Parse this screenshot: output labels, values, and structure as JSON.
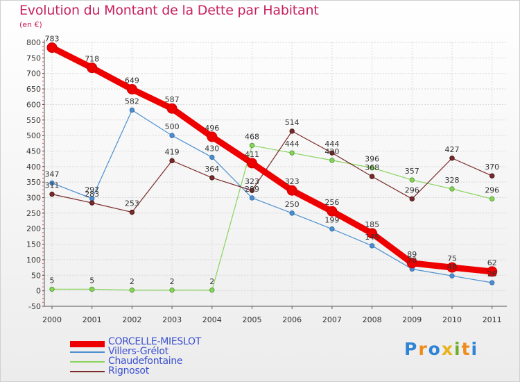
{
  "chart_data": {
    "type": "line",
    "title": "Evolution du Montant de la Dette par Habitant",
    "subtitle": "(en €)",
    "xlabel": "",
    "ylabel": "",
    "x": [
      "2000",
      "2001",
      "2002",
      "2003",
      "2004",
      "2005",
      "2006",
      "2007",
      "2008",
      "2009",
      "2010",
      "2011"
    ],
    "ylim": [
      -50,
      800
    ],
    "yticks": [
      "-50",
      "0",
      "50",
      "100",
      "150",
      "200",
      "250",
      "300",
      "350",
      "400",
      "450",
      "500",
      "550",
      "600",
      "650",
      "700",
      "750",
      "800"
    ],
    "grid": true,
    "legend_position": "bottom-left",
    "series": [
      {
        "name": "CORCELLE-MIESLOT",
        "color": "#ee0000",
        "values": [
          783,
          718,
          649,
          587,
          496,
          411,
          323,
          256,
          185,
          89,
          75,
          62
        ],
        "labels": [
          "783",
          "718",
          "649",
          "587",
          "496",
          "411",
          "323",
          "256",
          "185",
          "89",
          "75",
          "62"
        ]
      },
      {
        "name": "Villers-Grélot",
        "color": "#4b8fd0",
        "values": [
          347,
          297,
          582,
          500,
          430,
          299,
          250,
          199,
          145,
          70,
          48,
          26
        ],
        "labels": [
          "347",
          "297",
          "582",
          "500",
          "430",
          "299",
          "250",
          "199",
          "145",
          "70",
          "48",
          "26"
        ]
      },
      {
        "name": "Chaudefontaine",
        "color": "#88d45c",
        "values": [
          5,
          5,
          2,
          2,
          2,
          468,
          444,
          420,
          396,
          357,
          328,
          296
        ],
        "labels": [
          "5",
          "5",
          "2",
          "2",
          "2",
          "468",
          "444",
          "420",
          "396",
          "357",
          "328",
          "296"
        ]
      },
      {
        "name": "Rignosot",
        "color": "#7a2a2a",
        "values": [
          311,
          283,
          253,
          419,
          364,
          323,
          514,
          444,
          368,
          296,
          427,
          370
        ],
        "labels": [
          "311",
          "283",
          "253",
          "419",
          "364",
          "323",
          "514",
          "444",
          "368",
          "296",
          "427",
          "370"
        ]
      }
    ]
  },
  "brand": {
    "letters": [
      "P",
      "r",
      "o",
      "x",
      "i",
      "t",
      "i"
    ]
  }
}
